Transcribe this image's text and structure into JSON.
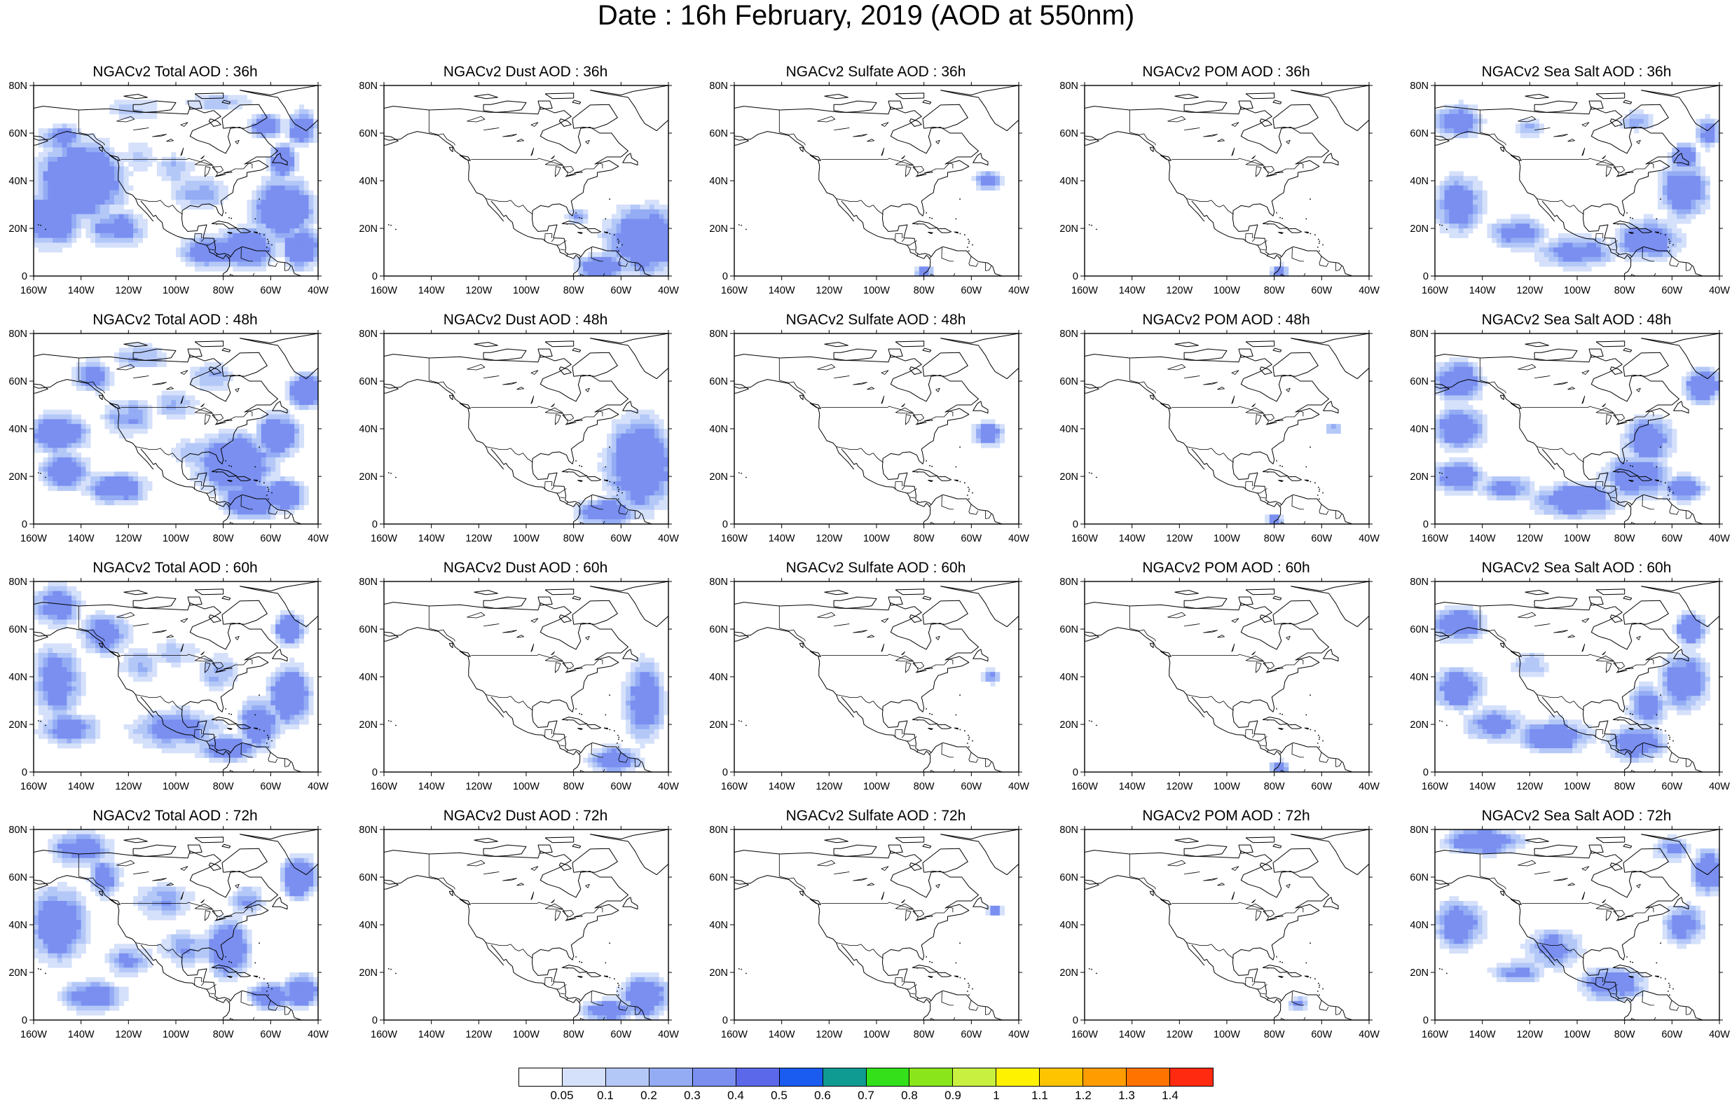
{
  "title": "Date : 16h February, 2019 (AOD at 550nm)",
  "x_ticks": [
    "160W",
    "140W",
    "120W",
    "100W",
    "80W",
    "60W",
    "40W"
  ],
  "y_ticks": [
    "0",
    "20N",
    "40N",
    "60N",
    "80N"
  ],
  "panel_titles": [
    [
      "NGACv2 Total AOD : 36h",
      "NGACv2 Dust AOD : 36h",
      "NGACv2 Sulfate AOD : 36h",
      "NGACv2 POM AOD : 36h",
      "NGACv2 Sea Salt AOD : 36h"
    ],
    [
      "NGACv2 Total AOD : 48h",
      "NGACv2 Dust AOD : 48h",
      "NGACv2 Sulfate AOD : 48h",
      "NGACv2 POM AOD : 48h",
      "NGACv2 Sea Salt AOD : 48h"
    ],
    [
      "NGACv2 Total AOD : 60h",
      "NGACv2 Dust AOD : 60h",
      "NGACv2 Sulfate AOD : 60h",
      "NGACv2 POM AOD : 60h",
      "NGACv2 Sea Salt AOD : 60h"
    ],
    [
      "NGACv2 Total AOD : 72h",
      "NGACv2 Dust AOD : 72h",
      "NGACv2 Sulfate AOD : 72h",
      "NGACv2 POM AOD : 72h",
      "NGACv2 Sea Salt  AOD : 72h"
    ]
  ],
  "map_extent": {
    "lon_min": -160,
    "lon_max": -40,
    "lat_min": 0,
    "lat_max": 80
  },
  "colorbar": {
    "labels": [
      "0.05",
      "0.1",
      "0.2",
      "0.3",
      "0.4",
      "0.5",
      "0.6",
      "0.7",
      "0.8",
      "0.9",
      "1",
      "1.1",
      "1.2",
      "1.3",
      "1.4"
    ],
    "colors": [
      "#ffffff",
      "#d5e0fa",
      "#b4c8f8",
      "#94acf4",
      "#7a8ff0",
      "#5c68ea",
      "#1a5cf0",
      "#0f9a92",
      "#33e01a",
      "#8ae61a",
      "#c8f040",
      "#fff200",
      "#ffc400",
      "#ff9c00",
      "#ff7300",
      "#ff2a10"
    ]
  }
}
